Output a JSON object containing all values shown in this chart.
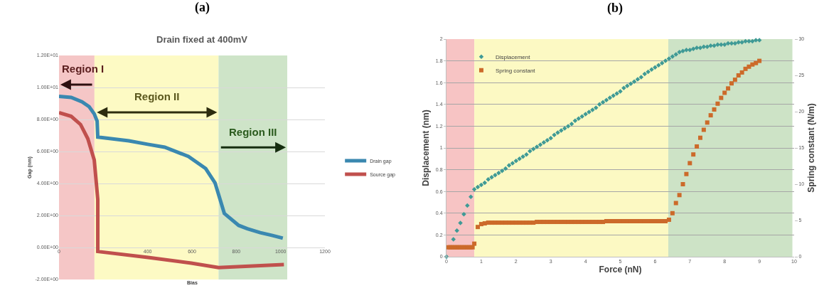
{
  "chart_data": [
    {
      "type": "line",
      "title": "Drain fixed at 400mV",
      "xlabel": "Bias",
      "ylabel": "Gap (nm)",
      "annotations": [
        "(a)"
      ],
      "xlim": [
        0,
        1200
      ],
      "xticks": [
        0,
        400,
        600,
        800,
        1000,
        1200
      ],
      "ylim": [
        -2,
        12
      ],
      "yticks": [
        {
          "value": -2,
          "label": "-2.00E+00"
        },
        {
          "value": 0,
          "label": "0.00E+00"
        },
        {
          "value": 2,
          "label": "2.00E+00"
        },
        {
          "value": 4,
          "label": "4.00E+00"
        },
        {
          "value": 6,
          "label": "6.00E+00"
        },
        {
          "value": 8,
          "label": "8.00E+00"
        },
        {
          "value": 10,
          "label": "1.00E+01"
        },
        {
          "value": 12,
          "label": "1.20E+01"
        }
      ],
      "grid": "y",
      "legend": "right",
      "bands": [
        {
          "axis": "x",
          "from": 0,
          "to": 160,
          "label": "Region I",
          "color": "#f5c6c6"
        },
        {
          "axis": "x",
          "from": 160,
          "to": 720,
          "label": "Region II",
          "color": "#fdfac4"
        },
        {
          "axis": "x",
          "from": 720,
          "to": 1030,
          "label": "Region III",
          "color": "#cee4c8"
        }
      ],
      "series": [
        {
          "name": "Drain gap",
          "color": "#3a88b0",
          "x": [
            0,
            55,
            104,
            136,
            159,
            172,
            175,
            315,
            400,
            477,
            584,
            662,
            704,
            727,
            746,
            811,
            850,
            908,
            960,
            1010
          ],
          "values": [
            9.45,
            9.38,
            9.1,
            8.8,
            8.35,
            7.9,
            6.9,
            6.67,
            6.45,
            6.27,
            5.69,
            4.93,
            4.04,
            3.0,
            2.13,
            1.38,
            1.17,
            0.93,
            0.76,
            0.58
          ]
        },
        {
          "name": "Source gap",
          "color": "#c0504d",
          "x": [
            0,
            55,
            97,
            130,
            159,
            175,
            175,
            402,
            597,
            720,
            1015
          ],
          "values": [
            8.43,
            8.2,
            7.69,
            6.8,
            5.47,
            3.0,
            -0.25,
            -0.62,
            -0.98,
            -1.25,
            -1.07
          ]
        }
      ]
    },
    {
      "type": "scatter",
      "xlabel": "Force (nN)",
      "ylabel": "Displacement (nm)",
      "y2label": "Spring constant (N/m)",
      "annotations": [
        "(b)"
      ],
      "xlim": [
        0,
        10
      ],
      "xticks": [
        0,
        1,
        2,
        3,
        4,
        5,
        6,
        7,
        8,
        9,
        10
      ],
      "ylim": [
        0,
        2
      ],
      "yticks": [
        0,
        0.2,
        0.4,
        0.6,
        0.8,
        1,
        1.2,
        1.4,
        1.6,
        1.8,
        2
      ],
      "y2lim": [
        0,
        30
      ],
      "y2ticks": [
        0,
        5,
        10,
        15,
        20,
        25,
        30
      ],
      "grid": "y",
      "legend": "top left",
      "bands": [
        {
          "axis": "x",
          "from": 0,
          "to": 0.8,
          "color": "#f7c4c4"
        },
        {
          "axis": "x",
          "from": 0.8,
          "to": 6.38,
          "color": "#fcf9c3"
        },
        {
          "axis": "x",
          "from": 6.38,
          "to": 9.95,
          "color": "#cde3c6"
        }
      ],
      "series": [
        {
          "name": "Displacement",
          "color": "#3f9a96",
          "marker": "diamond",
          "x": [
            0,
            0.2,
            0.3,
            0.4,
            0.5,
            0.6,
            0.7,
            0.8,
            0.9,
            1,
            1.1,
            1.2,
            1.3,
            1.4,
            1.5,
            1.6,
            1.7,
            1.8,
            1.9,
            2,
            2.1,
            2.2,
            2.3,
            2.4,
            2.5,
            2.6,
            2.7,
            2.8,
            2.9,
            3,
            3.1,
            3.2,
            3.3,
            3.4,
            3.5,
            3.6,
            3.7,
            3.8,
            3.9,
            4,
            4.1,
            4.2,
            4.3,
            4.4,
            4.5,
            4.6,
            4.7,
            4.8,
            4.9,
            5,
            5.1,
            5.2,
            5.3,
            5.4,
            5.5,
            5.6,
            5.7,
            5.8,
            5.9,
            6,
            6.1,
            6.2,
            6.3,
            6.4,
            6.5,
            6.6,
            6.7,
            6.8,
            6.9,
            7,
            7.1,
            7.2,
            7.3,
            7.4,
            7.5,
            7.6,
            7.7,
            7.8,
            7.9,
            8,
            8.1,
            8.2,
            8.3,
            8.4,
            8.5,
            8.6,
            8.7,
            8.8,
            8.9,
            9
          ],
          "values": [
            0,
            0.16,
            0.24,
            0.31,
            0.39,
            0.47,
            0.55,
            0.62,
            0.64,
            0.66,
            0.68,
            0.71,
            0.73,
            0.75,
            0.77,
            0.79,
            0.81,
            0.84,
            0.86,
            0.88,
            0.9,
            0.92,
            0.94,
            0.97,
            0.99,
            1.01,
            1.03,
            1.05,
            1.07,
            1.09,
            1.12,
            1.14,
            1.16,
            1.18,
            1.2,
            1.22,
            1.25,
            1.27,
            1.29,
            1.31,
            1.33,
            1.35,
            1.37,
            1.4,
            1.42,
            1.44,
            1.46,
            1.48,
            1.5,
            1.52,
            1.55,
            1.57,
            1.59,
            1.61,
            1.63,
            1.65,
            1.68,
            1.7,
            1.72,
            1.74,
            1.76,
            1.78,
            1.8,
            1.82,
            1.84,
            1.86,
            1.88,
            1.89,
            1.9,
            1.9,
            1.91,
            1.92,
            1.92,
            1.93,
            1.93,
            1.94,
            1.94,
            1.95,
            1.95,
            1.95,
            1.96,
            1.96,
            1.96,
            1.97,
            1.97,
            1.98,
            1.98,
            1.98,
            1.99,
            1.99
          ]
        },
        {
          "name": "Spring constant",
          "color": "#cc6a2a",
          "marker": "square",
          "axis": "y2",
          "x": [
            0.05,
            0.1,
            0.15,
            0.2,
            0.25,
            0.3,
            0.35,
            0.4,
            0.45,
            0.5,
            0.55,
            0.6,
            0.65,
            0.7,
            0.75,
            0.8,
            0.9,
            1,
            1.1,
            1.2,
            1.3,
            1.4,
            1.5,
            1.6,
            1.7,
            1.8,
            1.9,
            2,
            2.1,
            2.2,
            2.3,
            2.4,
            2.5,
            2.6,
            2.7,
            2.8,
            2.9,
            3,
            3.1,
            3.2,
            3.3,
            3.4,
            3.5,
            3.6,
            3.7,
            3.8,
            3.9,
            4,
            4.1,
            4.2,
            4.3,
            4.4,
            4.5,
            4.6,
            4.7,
            4.8,
            4.9,
            5,
            5.1,
            5.2,
            5.3,
            5.4,
            5.5,
            5.6,
            5.7,
            5.8,
            5.9,
            6,
            6.1,
            6.2,
            6.3,
            6.4,
            6.5,
            6.6,
            6.7,
            6.8,
            6.9,
            7,
            7.1,
            7.2,
            7.3,
            7.4,
            7.5,
            7.6,
            7.7,
            7.8,
            7.9,
            8,
            8.1,
            8.2,
            8.3,
            8.4,
            8.5,
            8.6,
            8.7,
            8.8,
            8.9,
            9
          ],
          "values": [
            1.3,
            1.3,
            1.3,
            1.3,
            1.3,
            1.3,
            1.3,
            1.3,
            1.3,
            1.3,
            1.3,
            1.3,
            1.3,
            1.3,
            1.3,
            1.8,
            4.1,
            4.5,
            4.6,
            4.7,
            4.7,
            4.7,
            4.7,
            4.7,
            4.7,
            4.7,
            4.7,
            4.7,
            4.7,
            4.7,
            4.7,
            4.7,
            4.7,
            4.8,
            4.8,
            4.8,
            4.8,
            4.8,
            4.8,
            4.8,
            4.8,
            4.8,
            4.8,
            4.8,
            4.8,
            4.8,
            4.8,
            4.8,
            4.8,
            4.8,
            4.8,
            4.8,
            4.8,
            4.9,
            4.9,
            4.9,
            4.9,
            4.9,
            4.9,
            4.9,
            4.9,
            4.9,
            4.9,
            4.9,
            4.9,
            4.9,
            4.9,
            4.9,
            4.9,
            4.9,
            4.9,
            5.1,
            6.0,
            7.4,
            8.5,
            10.0,
            11.4,
            12.9,
            14.1,
            15.2,
            16.4,
            17.5,
            18.5,
            19.5,
            20.3,
            21.1,
            21.9,
            22.6,
            23.2,
            23.9,
            24.4,
            25.0,
            25.4,
            25.9,
            26.2,
            26.5,
            26.7,
            27.0
          ]
        }
      ]
    }
  ]
}
